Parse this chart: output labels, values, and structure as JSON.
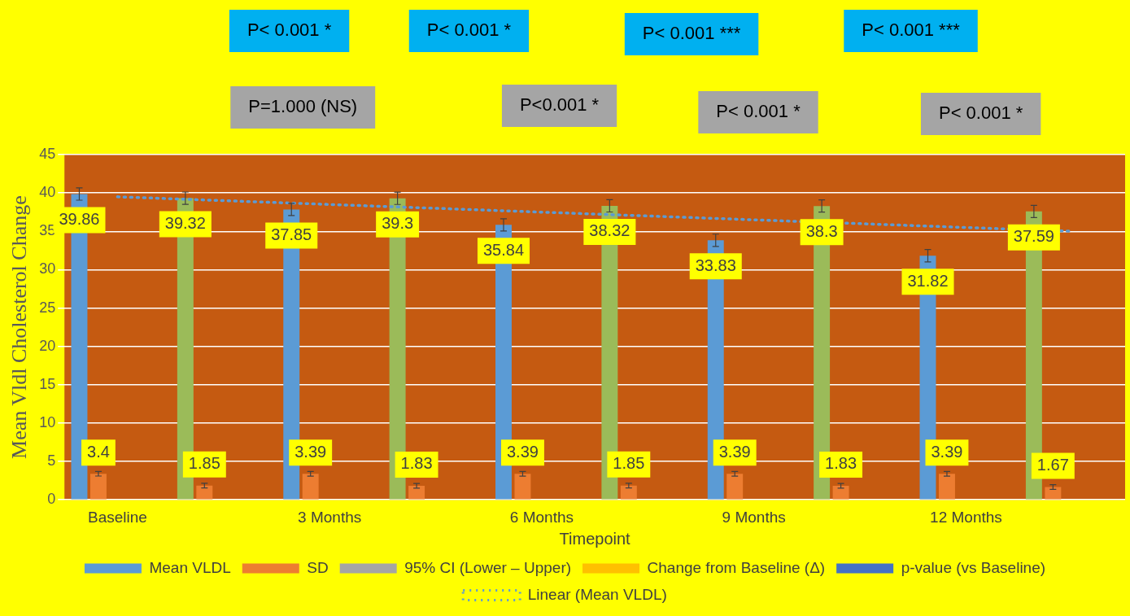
{
  "chart_data": {
    "type": "bar",
    "xlabel": "Timepoint",
    "ylabel": "Mean Vldl Cholesterol Change",
    "categories": [
      "Baseline",
      null,
      "3 Months",
      null,
      "6 Months",
      null,
      "9 Months",
      null,
      "12 Months",
      null
    ],
    "ylim": [
      0,
      45
    ],
    "yticks": [
      0,
      5,
      10,
      15,
      20,
      25,
      30,
      35,
      40,
      45
    ],
    "grid": "y",
    "legend": "bottom",
    "series": [
      {
        "name": "Mean VLDL",
        "color": "#5b9bd5",
        "colors": [
          "#5b9bd5",
          "#9bbb59",
          "#5b9bd5",
          "#9bbb59",
          "#5b9bd5",
          "#9bbb59",
          "#5b9bd5",
          "#9bbb59",
          "#5b9bd5",
          "#9bbb59"
        ],
        "values": [
          39.86,
          39.32,
          37.85,
          39.3,
          35.84,
          38.32,
          33.83,
          38.3,
          31.82,
          37.59
        ],
        "errors": [
          0.8,
          0.8,
          0.8,
          0.8,
          0.8,
          0.8,
          0.8,
          0.8,
          0.8,
          0.8
        ],
        "value_labels": [
          "39.86",
          "39.32",
          "37.85",
          "39.3",
          "35.84",
          "38.32",
          "33.83",
          "38.3",
          "31.82",
          "37.59"
        ]
      },
      {
        "name": "SD",
        "color": "#ed7d31",
        "values": [
          3.4,
          1.85,
          3.39,
          1.83,
          3.39,
          1.85,
          3.39,
          1.83,
          3.39,
          1.67
        ],
        "errors": [
          0.3,
          0.3,
          0.3,
          0.3,
          0.3,
          0.3,
          0.3,
          0.3,
          0.3,
          0.3
        ],
        "value_labels": [
          "3.4",
          "1.85",
          "3.39",
          "1.83",
          "3.39",
          "1.85",
          "3.39",
          "1.83",
          "3.39",
          "1.67"
        ]
      },
      {
        "name": "95% CI (Lower – Upper)",
        "color": "#a5a5a5",
        "values": [
          0,
          0,
          0,
          0,
          0,
          0,
          0,
          0,
          0,
          0
        ]
      },
      {
        "name": "Change from Baseline (Δ)",
        "color": "#ffc000",
        "values": [
          0,
          0,
          0,
          0,
          0,
          0,
          0,
          0,
          0,
          0
        ]
      },
      {
        "name": "p-value (vs Baseline)",
        "color": "#4472c4",
        "values": [
          0,
          0,
          0,
          0,
          0,
          0,
          0,
          0,
          0,
          0
        ]
      },
      {
        "name": "Linear (Mean VLDL)",
        "type": "line",
        "color": "#5b9bd5",
        "line_style": "dotted",
        "marker": "none",
        "values": [
          39.5,
          39,
          38.5,
          38,
          37.5,
          37,
          36.5,
          36,
          35.5,
          35
        ]
      }
    ],
    "annotations": [
      "P< 0.001 *",
      "P< 0.001 *",
      "P< 0.001 ***",
      "P< 0.001 ***",
      "P=1.000 (NS)",
      "P<0.001 *",
      "P< 0.001 *",
      "P< 0.001 *"
    ]
  }
}
